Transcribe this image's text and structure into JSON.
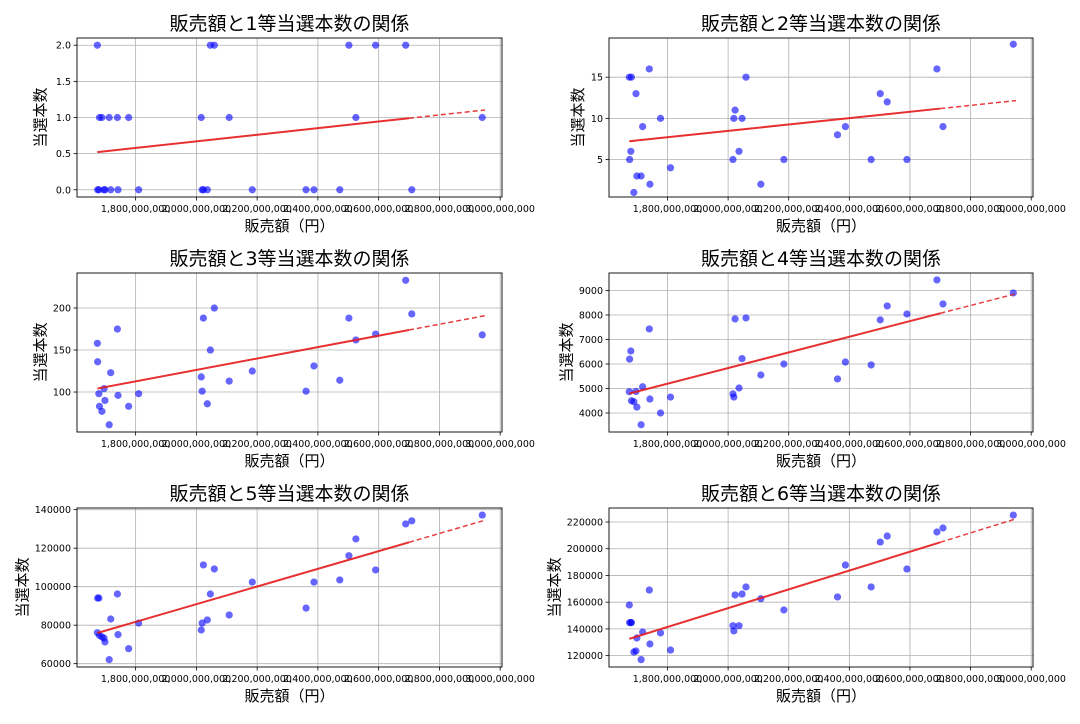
{
  "chart_data": [
    {
      "type": "scatter",
      "title": "販売額と1等当選本数の関係",
      "xlabel": "販売額（円）",
      "ylabel": "当選本数",
      "xlim": [
        1607000000,
        3006000000
      ],
      "ylim": [
        -0.1,
        2.1
      ],
      "xticks": [
        1800000000,
        2000000000,
        2200000000,
        2400000000,
        2600000000,
        2800000000,
        3000000000
      ],
      "xtick_labels": [
        "1,800,000,000",
        "2,000,000,000",
        "2,200,000,000",
        "2,400,000,000",
        "2,600,000,000",
        "2,800,000,000",
        "3,000,000,000"
      ],
      "yticks": [
        0,
        0.5,
        1,
        1.5,
        2
      ],
      "ytick_labels": [
        "0.0",
        "0.5",
        "1.0",
        "1.5",
        "2.0"
      ],
      "grid": true,
      "x": [
        1674000000,
        1675000000,
        1679000000,
        1681000000,
        1689000000,
        1696000000,
        1699000000,
        1713000000,
        1718000000,
        1740000000,
        1742000000,
        1777000000,
        1810000000,
        2016000000,
        2019000000,
        2023000000,
        2036000000,
        2046000000,
        2059000000,
        2108000000,
        2184000000,
        2361000000,
        2387000000,
        2472000000,
        2502000000,
        2525000000,
        2590000000,
        2689000000,
        2709000000,
        2941000000
      ],
      "y": [
        2,
        0,
        0,
        1,
        1,
        0,
        0,
        1,
        0,
        1,
        0,
        1,
        0,
        1,
        0,
        0,
        0,
        2,
        2,
        1,
        0,
        0,
        0,
        0,
        2,
        1,
        2,
        2,
        0,
        1
      ]
    },
    {
      "type": "scatter",
      "title": "販売額と2等当選本数の関係",
      "xlabel": "販売額（円）",
      "ylabel": "当選本数",
      "xlim": [
        1607000000,
        3006000000
      ],
      "ylim": [
        0.45,
        19.76
      ],
      "xticks": [
        1800000000,
        2000000000,
        2200000000,
        2400000000,
        2600000000,
        2800000000,
        3000000000
      ],
      "xtick_labels": [
        "1,800,000,000",
        "2,000,000,000",
        "2,200,000,000",
        "2,400,000,000",
        "2,600,000,000",
        "2,800,000,000",
        "3,000,000,000"
      ],
      "yticks": [
        5,
        10,
        15
      ],
      "ytick_labels": [
        "5",
        "10",
        "15"
      ],
      "grid": true,
      "x": [
        1674000000,
        1675000000,
        1679000000,
        1681000000,
        1689000000,
        1696000000,
        1699000000,
        1713000000,
        1718000000,
        1740000000,
        1742000000,
        1777000000,
        1810000000,
        2016000000,
        2019000000,
        2023000000,
        2036000000,
        2046000000,
        2059000000,
        2108000000,
        2184000000,
        2361000000,
        2387000000,
        2472000000,
        2502000000,
        2525000000,
        2590000000,
        2689000000,
        2709000000,
        2941000000
      ],
      "y": [
        15,
        5,
        6,
        15,
        1,
        13,
        3,
        3,
        9,
        16,
        2,
        10,
        4,
        5,
        10,
        11,
        6,
        10,
        15,
        2,
        5,
        8,
        9,
        5,
        13,
        12,
        5,
        16,
        9,
        19
      ]
    },
    {
      "type": "scatter",
      "title": "販売額と3等当選本数の関係",
      "xlabel": "販売額（円）",
      "ylabel": "当選本数",
      "xlim": [
        1607000000,
        3006000000
      ],
      "ylim": [
        52.4,
        241.7
      ],
      "xticks": [
        1800000000,
        2000000000,
        2200000000,
        2400000000,
        2600000000,
        2800000000,
        3000000000
      ],
      "xtick_labels": [
        "1,800,000,000",
        "2,000,000,000",
        "2,200,000,000",
        "2,400,000,000",
        "2,600,000,000",
        "2,800,000,000",
        "3,000,000,000"
      ],
      "yticks": [
        100,
        150,
        200
      ],
      "ytick_labels": [
        "100",
        "150",
        "200"
      ],
      "grid": true,
      "x": [
        1674000000,
        1675000000,
        1679000000,
        1681000000,
        1689000000,
        1696000000,
        1699000000,
        1713000000,
        1718000000,
        1740000000,
        1742000000,
        1777000000,
        1810000000,
        2016000000,
        2019000000,
        2023000000,
        2036000000,
        2046000000,
        2059000000,
        2108000000,
        2184000000,
        2361000000,
        2387000000,
        2472000000,
        2502000000,
        2525000000,
        2590000000,
        2689000000,
        2709000000,
        2941000000
      ],
      "y": [
        158,
        136,
        98,
        83,
        77,
        104,
        90,
        61,
        123,
        175,
        96,
        83,
        98,
        118,
        101,
        188,
        86,
        150,
        200,
        113,
        125,
        101,
        131,
        114,
        188,
        162,
        169,
        233,
        193,
        168
      ]
    },
    {
      "type": "scatter",
      "title": "販売額と4等当選本数の関係",
      "xlabel": "販売額（円）",
      "ylabel": "当選本数",
      "xlim": [
        1607000000,
        3006000000
      ],
      "ylim": [
        3224,
        9714
      ],
      "xticks": [
        1800000000,
        2000000000,
        2200000000,
        2400000000,
        2600000000,
        2800000000,
        3000000000
      ],
      "xtick_labels": [
        "1,800,000,000",
        "2,000,000,000",
        "2,200,000,000",
        "2,400,000,000",
        "2,600,000,000",
        "2,800,000,000",
        "3,000,000,000"
      ],
      "yticks": [
        4000,
        5000,
        6000,
        7000,
        8000,
        9000
      ],
      "ytick_labels": [
        "4000",
        "5000",
        "6000",
        "7000",
        "8000",
        "9000"
      ],
      "grid": true,
      "x": [
        1674000000,
        1675000000,
        1679000000,
        1681000000,
        1689000000,
        1696000000,
        1699000000,
        1713000000,
        1718000000,
        1740000000,
        1742000000,
        1777000000,
        1810000000,
        2016000000,
        2019000000,
        2023000000,
        2036000000,
        2046000000,
        2059000000,
        2108000000,
        2184000000,
        2361000000,
        2387000000,
        2472000000,
        2502000000,
        2525000000,
        2590000000,
        2689000000,
        2709000000,
        2941000000
      ],
      "y": [
        4870,
        6200,
        6530,
        4500,
        4460,
        4880,
        4240,
        3520,
        5070,
        7430,
        4570,
        4000,
        4650,
        4780,
        4650,
        7840,
        5020,
        6220,
        7880,
        5550,
        6000,
        5390,
        6080,
        5960,
        7800,
        8370,
        8040,
        9430,
        8450,
        8900
      ]
    },
    {
      "type": "scatter",
      "title": "販売額と5等当選本数の関係",
      "xlabel": "販売額（円）",
      "ylabel": "当選本数",
      "xlim": [
        1607000000,
        3006000000
      ],
      "ylim": [
        58270,
        140870
      ],
      "xticks": [
        1800000000,
        2000000000,
        2200000000,
        2400000000,
        2600000000,
        2800000000,
        3000000000
      ],
      "xtick_labels": [
        "1,800,000,000",
        "2,000,000,000",
        "2,200,000,000",
        "2,400,000,000",
        "2,600,000,000",
        "2,800,000,000",
        "3,000,000,000"
      ],
      "yticks": [
        60000,
        80000,
        100000,
        120000,
        140000
      ],
      "ytick_labels": [
        "60000",
        "80000",
        "100000",
        "120000",
        "140000"
      ],
      "grid": true,
      "x": [
        1674000000,
        1675000000,
        1679000000,
        1681000000,
        1689000000,
        1696000000,
        1699000000,
        1713000000,
        1718000000,
        1740000000,
        1742000000,
        1777000000,
        1810000000,
        2016000000,
        2019000000,
        2023000000,
        2036000000,
        2046000000,
        2059000000,
        2108000000,
        2184000000,
        2361000000,
        2387000000,
        2472000000,
        2502000000,
        2525000000,
        2590000000,
        2689000000,
        2709000000,
        2941000000
      ],
      "y": [
        76100,
        94100,
        94100,
        74700,
        73900,
        73300,
        71300,
        62100,
        83200,
        96200,
        75100,
        67800,
        81100,
        77500,
        81100,
        111300,
        82700,
        96200,
        109200,
        85300,
        102400,
        88900,
        102400,
        103500,
        116100,
        124800,
        108700,
        132600,
        134200,
        137200
      ]
    },
    {
      "type": "scatter",
      "title": "販売額と6等当選本数の関係",
      "xlabel": "販売額（円）",
      "ylabel": "当選本数",
      "xlim": [
        1607000000,
        3006000000
      ],
      "ylim": [
        111500,
        230470
      ],
      "xticks": [
        1800000000,
        2000000000,
        2200000000,
        2400000000,
        2600000000,
        2800000000,
        3000000000
      ],
      "xtick_labels": [
        "1,800,000,000",
        "2,000,000,000",
        "2,200,000,000",
        "2,400,000,000",
        "2,600,000,000",
        "2,800,000,000",
        "3,000,000,000"
      ],
      "yticks": [
        120000,
        140000,
        160000,
        180000,
        200000,
        220000
      ],
      "ytick_labels": [
        "120000",
        "140000",
        "160000",
        "180000",
        "200000",
        "220000"
      ],
      "grid": true,
      "x": [
        1674000000,
        1675000000,
        1679000000,
        1681000000,
        1689000000,
        1696000000,
        1699000000,
        1713000000,
        1718000000,
        1740000000,
        1742000000,
        1777000000,
        1810000000,
        2016000000,
        2019000000,
        2023000000,
        2036000000,
        2046000000,
        2059000000,
        2108000000,
        2184000000,
        2361000000,
        2387000000,
        2472000000,
        2502000000,
        2525000000,
        2590000000,
        2689000000,
        2709000000,
        2941000000
      ],
      "y": [
        157900,
        144700,
        144700,
        144700,
        122700,
        123500,
        133200,
        117000,
        137700,
        169100,
        128700,
        137000,
        124200,
        142400,
        138500,
        165400,
        142400,
        166100,
        171400,
        162600,
        154200,
        163900,
        187800,
        171400,
        205000,
        209500,
        184800,
        212500,
        215500,
        225200
      ]
    }
  ],
  "style": {
    "point_color": "#0000ff",
    "trend_color": "#e41a1c",
    "grid_color": "#b0b0b0",
    "trend_solid_end": 2700000000,
    "trend_dashed_end": 2950000000
  }
}
